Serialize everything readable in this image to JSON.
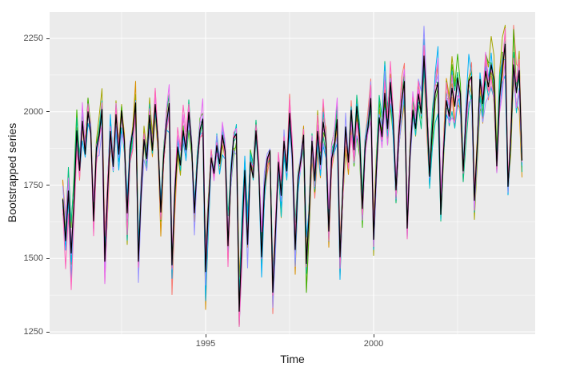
{
  "figure": {
    "xlabel": "Time",
    "ylabel": "Bootstrapped series"
  },
  "chart_data": {
    "type": "line",
    "title": "",
    "xlabel": "Time",
    "ylabel": "Bootstrapped series",
    "legend": "none",
    "grid": true,
    "panel_background": "#EBEBEB",
    "grid_color": "#FFFFFF",
    "axis_text_color": "#4D4D4D",
    "tick_color": "#333333",
    "x_ticks": [
      1995,
      2000
    ],
    "x_tick_labels": [
      "1995",
      "2000"
    ],
    "x_minor_ticks": [
      1992.5,
      1997.5,
      2002.5
    ],
    "y_ticks": [
      1250,
      1500,
      1750,
      2000,
      2250
    ],
    "y_tick_labels": [
      "1250",
      "1500",
      "1750",
      "2000",
      "2250"
    ],
    "y_minor_ticks": [
      1375,
      1625,
      1875,
      2125
    ],
    "xlim": [
      1990.36,
      2004.81
    ],
    "ylim": [
      1229,
      2341
    ],
    "start_time": 1990.75,
    "frequency": 12,
    "original_series": {
      "name": "original-series",
      "color": "#000000",
      "values": [
        1700,
        1560,
        1730,
        1518,
        1698,
        1935,
        1800,
        1968,
        1855,
        2000,
        1928,
        1628,
        1875,
        1920,
        2008,
        1490,
        1725,
        1933,
        1813,
        1990,
        1855,
        2003,
        1900,
        1655,
        1873,
        1933,
        2030,
        1490,
        1728,
        1905,
        1840,
        1988,
        1868,
        2025,
        1900,
        1658,
        1845,
        1960,
        2028,
        1478,
        1725,
        1880,
        1818,
        1935,
        1870,
        1998,
        1888,
        1655,
        1820,
        1938,
        1975,
        1455,
        1673,
        1843,
        1790,
        1885,
        1823,
        1920,
        1865,
        1543,
        1783,
        1910,
        1925,
        1320,
        1575,
        1800,
        1548,
        1828,
        1775,
        1935,
        1798,
        1505,
        1740,
        1838,
        1868,
        1385,
        1600,
        1828,
        1715,
        1900,
        1798,
        1995,
        1845,
        1530,
        1768,
        1835,
        1920,
        1483,
        1663,
        1900,
        1765,
        1933,
        1820,
        1965,
        1893,
        1593,
        1840,
        1885,
        1973,
        1505,
        1740,
        1948,
        1828,
        2005,
        1870,
        2018,
        1915,
        1670,
        1888,
        1948,
        2045,
        1565,
        1803,
        1980,
        1915,
        2063,
        1943,
        2100,
        1975,
        1733,
        1920,
        2035,
        2103,
        1603,
        1850,
        2005,
        1943,
        2060,
        1995,
        2190,
        2013,
        1780,
        1945,
        2063,
        2100,
        1650,
        1868,
        2038,
        1985,
        2080,
        2018,
        2115,
        2060,
        1798,
        1978,
        2105,
        2120,
        1698,
        1885,
        2110,
        2028,
        2138,
        2085,
        2160,
        2108,
        1815,
        2050,
        2148,
        2230,
        1745,
        1912,
        2160,
        2065,
        2140,
        1835
      ]
    },
    "bootstrap_series": {
      "count": 10,
      "colors": [
        "#F8766D",
        "#D89000",
        "#A3A500",
        "#39B600",
        "#00BF7D",
        "#00BFC4",
        "#00B0F6",
        "#9590FF",
        "#E76BF3",
        "#FF62BC"
      ],
      "generation": {
        "seed_base": 1000,
        "seed_step": 77,
        "noise_base": 40,
        "noise_scale": 0.18,
        "noise_cap": 135,
        "center": 1830,
        "clamp": [
          1268,
          2295
        ]
      }
    }
  }
}
